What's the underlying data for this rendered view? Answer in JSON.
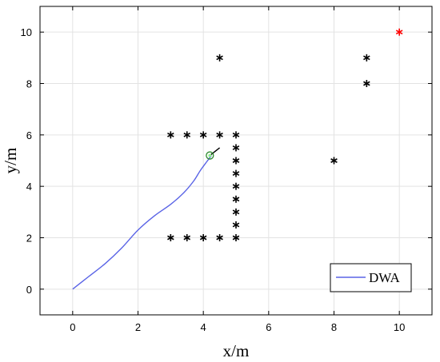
{
  "chart_data": {
    "type": "line",
    "xlabel": "x/m",
    "ylabel": "y/m",
    "xlim": [
      -1,
      11
    ],
    "ylim": [
      -1,
      11
    ],
    "xticks": [
      0,
      2,
      4,
      6,
      8,
      10
    ],
    "yticks": [
      0,
      2,
      4,
      6,
      8,
      10
    ],
    "grid": true,
    "legend": {
      "placement": "bottom-right",
      "entries": [
        "DWA"
      ]
    },
    "series": [
      {
        "name": "DWA",
        "color": "#5a64e6",
        "points": [
          [
            0,
            0
          ],
          [
            0.5,
            0.5
          ],
          [
            1,
            1
          ],
          [
            1.5,
            1.6
          ],
          [
            2,
            2.3
          ],
          [
            2.5,
            2.85
          ],
          [
            3,
            3.3
          ],
          [
            3.4,
            3.75
          ],
          [
            3.7,
            4.2
          ],
          [
            3.9,
            4.6
          ],
          [
            4.1,
            4.95
          ],
          [
            4.25,
            5.2
          ]
        ]
      }
    ],
    "obstacles": {
      "color": "#000000",
      "points": [
        [
          3,
          6
        ],
        [
          3.5,
          6
        ],
        [
          4,
          6
        ],
        [
          4.5,
          6
        ],
        [
          5,
          6
        ],
        [
          5,
          5.5
        ],
        [
          5,
          5
        ],
        [
          5,
          4.5
        ],
        [
          5,
          4
        ],
        [
          5,
          3.5
        ],
        [
          5,
          3
        ],
        [
          5,
          2.5
        ],
        [
          5,
          2
        ],
        [
          3,
          2
        ],
        [
          3.5,
          2
        ],
        [
          4,
          2
        ],
        [
          4.5,
          2
        ],
        [
          4.5,
          9
        ],
        [
          8,
          5
        ],
        [
          9,
          9
        ],
        [
          9,
          8
        ]
      ]
    },
    "goal": {
      "point": [
        10,
        10
      ],
      "color": "#ff0000"
    },
    "robot": {
      "point": [
        4.2,
        5.2
      ],
      "circle_color": "#2e8b2e",
      "fill_color": "#90ee90",
      "heading_end": [
        4.5,
        5.5
      ]
    }
  }
}
